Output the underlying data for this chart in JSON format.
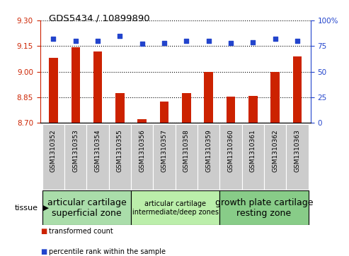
{
  "title": "GDS5434 / 10899890",
  "samples": [
    "GSM1310352",
    "GSM1310353",
    "GSM1310354",
    "GSM1310355",
    "GSM1310356",
    "GSM1310357",
    "GSM1310358",
    "GSM1310359",
    "GSM1310360",
    "GSM1310361",
    "GSM1310362",
    "GSM1310363"
  ],
  "bar_values": [
    9.08,
    9.145,
    9.12,
    8.875,
    8.72,
    8.825,
    8.875,
    9.0,
    8.852,
    8.858,
    9.0,
    9.09
  ],
  "percentile_values": [
    82,
    80,
    80,
    85,
    77,
    78,
    80,
    80,
    78,
    79,
    82,
    80
  ],
  "ylim_left": [
    8.7,
    9.3
  ],
  "ylim_right": [
    0,
    100
  ],
  "yticks_left": [
    8.7,
    8.85,
    9.0,
    9.15,
    9.3
  ],
  "yticks_right": [
    0,
    25,
    50,
    75,
    100
  ],
  "bar_color": "#cc2200",
  "dot_color": "#2244cc",
  "grid_color": "#000000",
  "tissue_groups": [
    {
      "label": "articular cartilage\nsuperficial zone",
      "start": 0,
      "end": 4,
      "color": "#aaddaa",
      "fontsize": 9
    },
    {
      "label": "articular cartilage\nintermediate/deep zones",
      "start": 4,
      "end": 8,
      "color": "#bbeeaa",
      "fontsize": 7
    },
    {
      "label": "growth plate cartilage\nresting zone",
      "start": 8,
      "end": 12,
      "color": "#88cc88",
      "fontsize": 9
    }
  ],
  "legend_bar_label": "transformed count",
  "legend_dot_label": "percentile rank within the sample",
  "tissue_label": "tissue",
  "sample_bg_color": "#cccccc",
  "bar_width": 0.4
}
